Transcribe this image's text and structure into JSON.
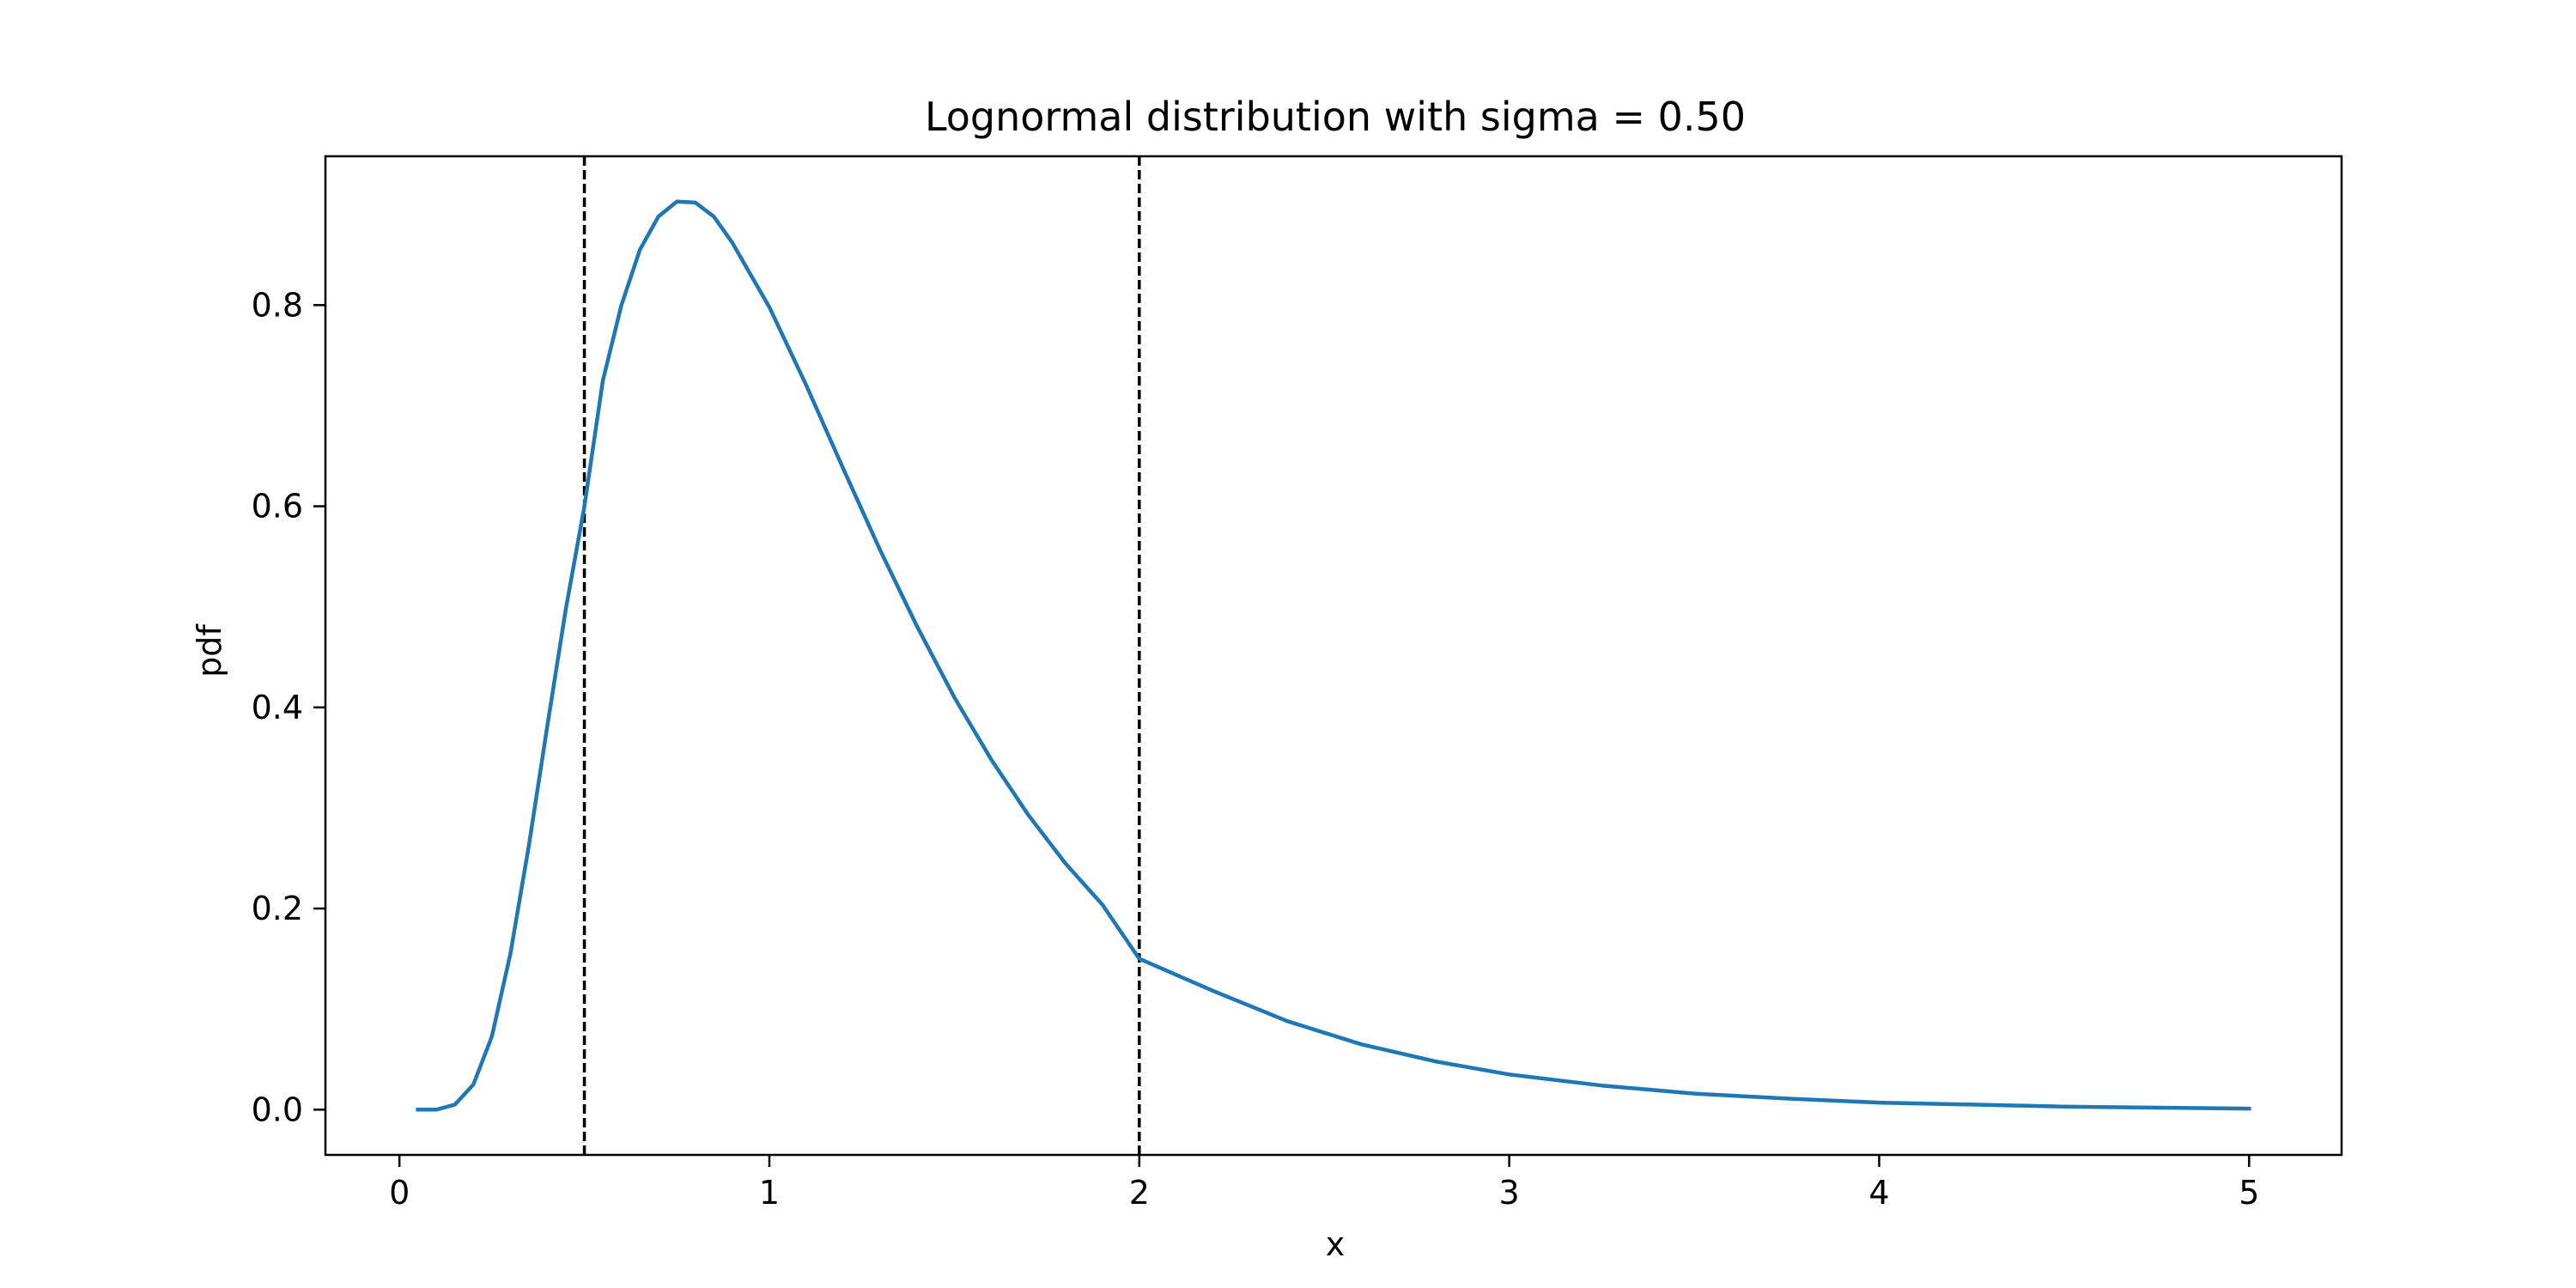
{
  "chart_data": {
    "type": "line",
    "title": "Lognormal distribution with sigma = 0.50",
    "xlabel": "x",
    "ylabel": "pdf",
    "xlim": [
      -0.2,
      5.25
    ],
    "ylim": [
      -0.045,
      0.948
    ],
    "grid": false,
    "x_ticks": [
      {
        "value": 0,
        "label": "0"
      },
      {
        "value": 1,
        "label": "1"
      },
      {
        "value": 2,
        "label": "2"
      },
      {
        "value": 3,
        "label": "3"
      },
      {
        "value": 4,
        "label": "4"
      },
      {
        "value": 5,
        "label": "5"
      }
    ],
    "y_ticks": [
      {
        "value": 0.0,
        "label": "0.0"
      },
      {
        "value": 0.2,
        "label": "0.2"
      },
      {
        "value": 0.4,
        "label": "0.4"
      },
      {
        "value": 0.6,
        "label": "0.6"
      },
      {
        "value": 0.8,
        "label": "0.8"
      }
    ],
    "series": [
      {
        "color": "#1f77b4",
        "x": [
          0.05,
          0.1,
          0.15,
          0.2,
          0.25,
          0.3,
          0.35,
          0.4,
          0.45,
          0.5,
          0.55,
          0.6,
          0.65,
          0.7,
          0.75,
          0.8,
          0.85,
          0.9,
          0.95,
          1.0,
          1.1,
          1.2,
          1.3,
          1.4,
          1.5,
          1.6,
          1.7,
          1.8,
          1.9,
          2.0,
          2.2,
          2.4,
          2.6,
          2.8,
          3.0,
          3.25,
          3.5,
          3.75,
          4.0,
          4.25,
          4.5,
          4.75,
          5.0
        ],
        "y": [
          0.0,
          0.0,
          0.005,
          0.025,
          0.073,
          0.155,
          0.263,
          0.382,
          0.498,
          0.6,
          0.725,
          0.8,
          0.855,
          0.888,
          0.903,
          0.902,
          0.888,
          0.862,
          0.83,
          0.798,
          0.72,
          0.637,
          0.556,
          0.48,
          0.41,
          0.348,
          0.293,
          0.245,
          0.204,
          0.15,
          0.118,
          0.088,
          0.065,
          0.048,
          0.035,
          0.024,
          0.016,
          0.011,
          0.007,
          0.005,
          0.003,
          0.002,
          0.001
        ]
      }
    ],
    "reference_lines": [
      {
        "axis": "x",
        "value": 0.5,
        "style": "dashed",
        "color": "#000000"
      },
      {
        "axis": "x",
        "value": 2.0,
        "style": "dashed",
        "color": "#000000"
      }
    ]
  }
}
